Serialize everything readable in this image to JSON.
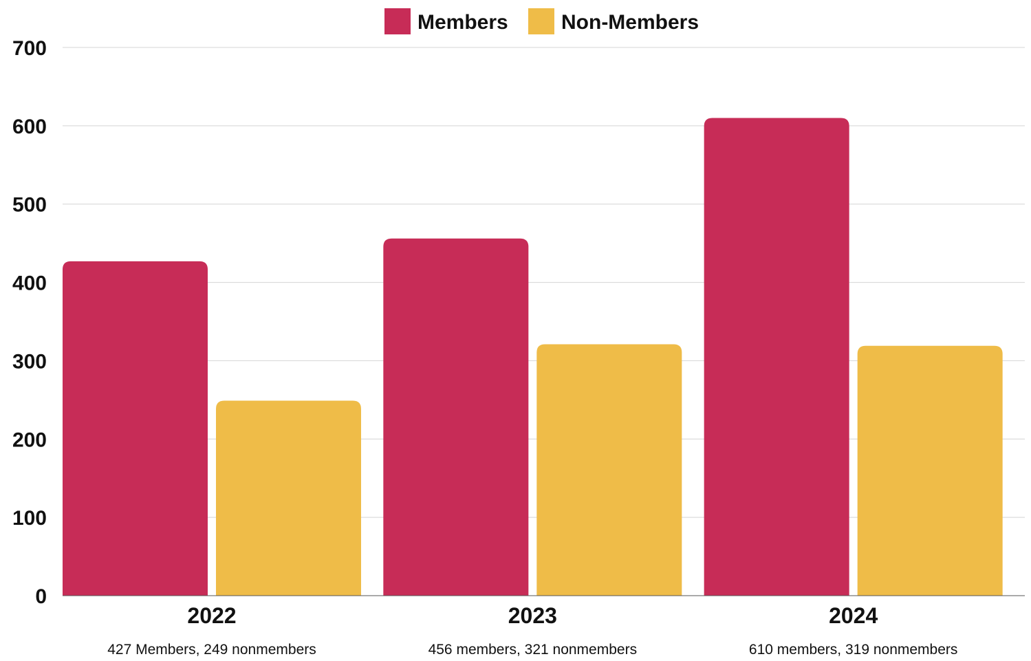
{
  "chart_data": {
    "type": "bar",
    "categories": [
      "2022",
      "2023",
      "2024"
    ],
    "category_captions": [
      "427 Members, 249 nonmembers",
      "456 members, 321 nonmembers",
      "610 members, 319 nonmembers"
    ],
    "series": [
      {
        "name": "Members",
        "color": "#c72c57",
        "values": [
          427,
          456,
          610
        ]
      },
      {
        "name": "Non-Members",
        "color": "#efbc48",
        "values": [
          249,
          321,
          319
        ]
      }
    ],
    "ylim": [
      0,
      700
    ],
    "yticks": [
      0,
      100,
      200,
      300,
      400,
      500,
      600,
      700
    ],
    "grid": true,
    "legend_position": "top-center"
  }
}
